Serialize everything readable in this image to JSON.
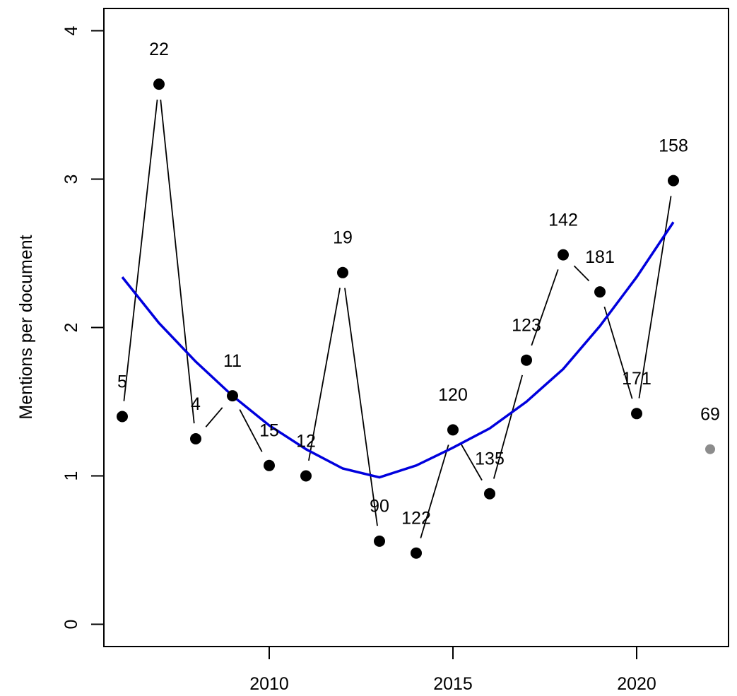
{
  "chart_data": {
    "type": "scatter",
    "title": "",
    "xlabel": "",
    "ylabel": "Mentions per document",
    "xlim": [
      2005.5,
      2022.5
    ],
    "ylim": [
      -0.15,
      4.15
    ],
    "grid": false,
    "x_ticks": [
      2010,
      2015,
      2020
    ],
    "y_ticks": [
      0,
      1,
      2,
      3,
      4
    ],
    "colors": {
      "points": "#000000",
      "connector": "#000000",
      "trend": "#0000dd",
      "excluded_point": "#8c8c8c"
    },
    "points": [
      {
        "x": 2006,
        "y": 1.4,
        "label": "5"
      },
      {
        "x": 2007,
        "y": 3.64,
        "label": "22"
      },
      {
        "x": 2008,
        "y": 1.25,
        "label": "4"
      },
      {
        "x": 2009,
        "y": 1.54,
        "label": "11"
      },
      {
        "x": 2010,
        "y": 1.07,
        "label": "15"
      },
      {
        "x": 2011,
        "y": 1.0,
        "label": "12"
      },
      {
        "x": 2012,
        "y": 2.37,
        "label": "19"
      },
      {
        "x": 2013,
        "y": 0.56,
        "label": "90"
      },
      {
        "x": 2014,
        "y": 0.48,
        "label": "122"
      },
      {
        "x": 2015,
        "y": 1.31,
        "label": "120"
      },
      {
        "x": 2016,
        "y": 0.88,
        "label": "135"
      },
      {
        "x": 2017,
        "y": 1.78,
        "label": "123"
      },
      {
        "x": 2018,
        "y": 2.49,
        "label": "142"
      },
      {
        "x": 2019,
        "y": 2.24,
        "label": "181"
      },
      {
        "x": 2020,
        "y": 1.42,
        "label": "171"
      },
      {
        "x": 2021,
        "y": 2.99,
        "label": "158"
      }
    ],
    "excluded_points": [
      {
        "x": 2022,
        "y": 1.18,
        "label": "69"
      }
    ],
    "trend_line": {
      "x": [
        2006,
        2007,
        2008,
        2009,
        2010,
        2011,
        2012,
        2013,
        2014,
        2015,
        2016,
        2017,
        2018,
        2019,
        2020,
        2021
      ],
      "y": [
        2.34,
        2.03,
        1.77,
        1.54,
        1.34,
        1.18,
        1.05,
        0.99,
        1.07,
        1.19,
        1.32,
        1.5,
        1.72,
        2.01,
        2.34,
        2.71
      ]
    }
  }
}
